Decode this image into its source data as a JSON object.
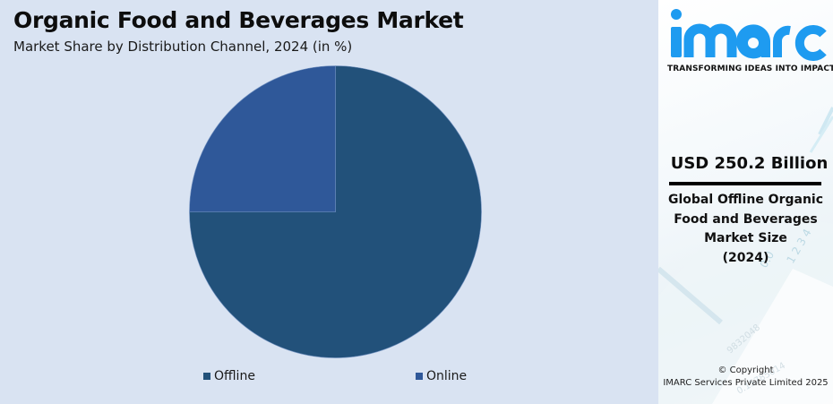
{
  "header": {
    "title": "Organic Food and Beverages Market",
    "subtitle": "Market Share by Distribution Channel, 2024 (in %)"
  },
  "chart_data": {
    "type": "pie",
    "title": "Organic Food and Beverages Market",
    "subtitle": "Market Share by Distribution Channel, 2024 (in %)",
    "categories": [
      "Offline",
      "Online"
    ],
    "values": [
      75,
      25
    ],
    "colors": [
      "#22517a",
      "#2f5899"
    ],
    "legend_position": "bottom",
    "start_angle": "12 o'clock, Offline clockwise"
  },
  "legend": {
    "items": [
      {
        "label": "Offline",
        "color": "#22517a"
      },
      {
        "label": "Online",
        "color": "#2f5899"
      }
    ]
  },
  "sidebar": {
    "logo_text": "imarc",
    "tagline": "TRANSFORMING IDEAS INTO IMPACT",
    "value": "USD 250.2 Billion",
    "description_lines": [
      "Global Offline Organic",
      "Food and Beverages",
      "Market Size",
      "(2024)"
    ],
    "copyright_line1": "© Copyright",
    "copyright_line2": "IMARC Services Private Limited 2025"
  },
  "colors": {
    "background": "#d9e3f2",
    "brand": "#1e9bf0"
  }
}
